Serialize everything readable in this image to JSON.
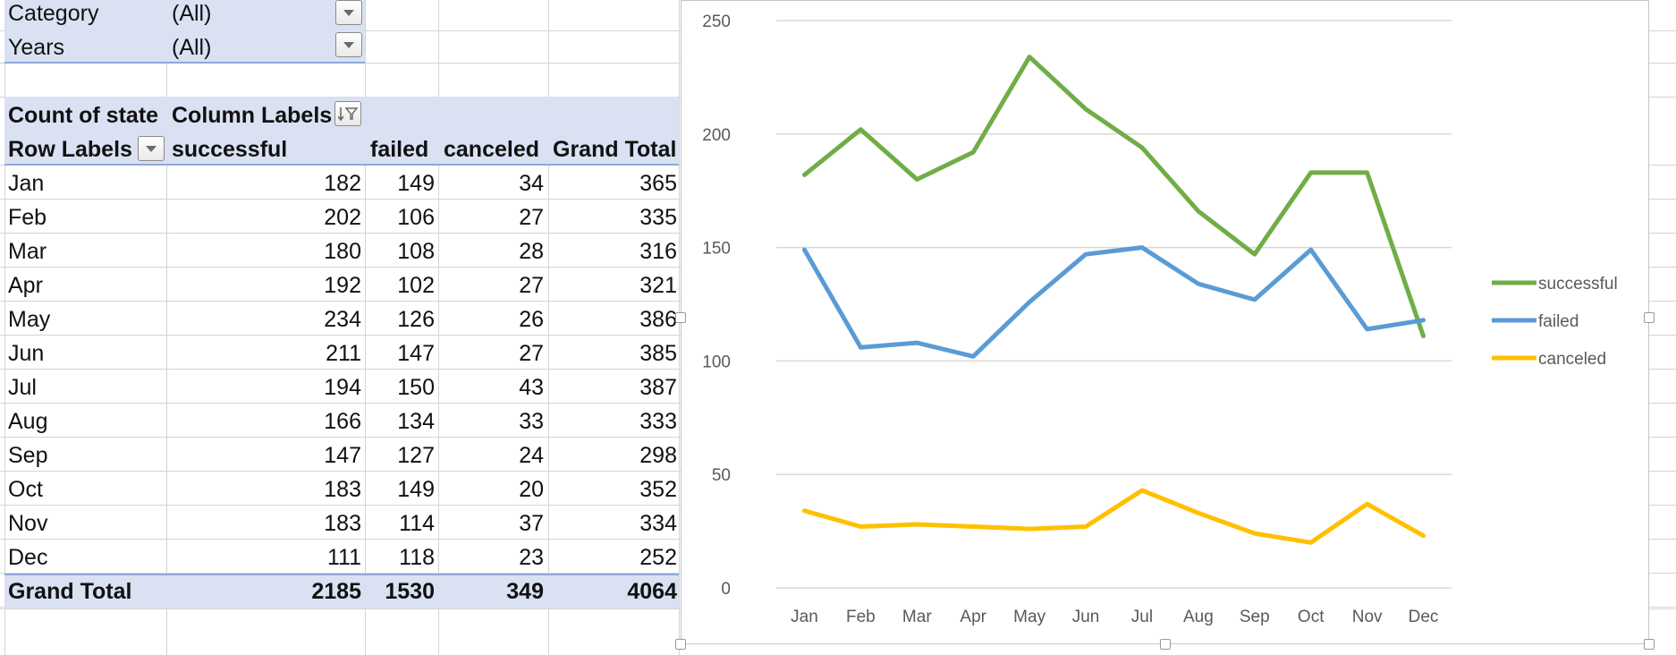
{
  "filters": [
    {
      "label": "Category",
      "value": "(All)"
    },
    {
      "label": "Years",
      "value": "(All)"
    }
  ],
  "pivot": {
    "value_field": "Count of state",
    "column_labels": "Column Labels",
    "row_labels": "Row Labels",
    "columns": [
      "successful",
      "failed",
      "canceled",
      "Grand Total"
    ],
    "rows": [
      {
        "label": "Jan",
        "values": [
          "182",
          "149",
          "34",
          "365"
        ]
      },
      {
        "label": "Feb",
        "values": [
          "202",
          "106",
          "27",
          "335"
        ]
      },
      {
        "label": "Mar",
        "values": [
          "180",
          "108",
          "28",
          "316"
        ]
      },
      {
        "label": "Apr",
        "values": [
          "192",
          "102",
          "27",
          "321"
        ]
      },
      {
        "label": "May",
        "values": [
          "234",
          "126",
          "26",
          "386"
        ]
      },
      {
        "label": "Jun",
        "values": [
          "211",
          "147",
          "27",
          "385"
        ]
      },
      {
        "label": "Jul",
        "values": [
          "194",
          "150",
          "43",
          "387"
        ]
      },
      {
        "label": "Aug",
        "values": [
          "166",
          "134",
          "33",
          "333"
        ]
      },
      {
        "label": "Sep",
        "values": [
          "147",
          "127",
          "24",
          "298"
        ]
      },
      {
        "label": "Oct",
        "values": [
          "183",
          "149",
          "20",
          "352"
        ]
      },
      {
        "label": "Nov",
        "values": [
          "183",
          "114",
          "37",
          "334"
        ]
      },
      {
        "label": "Dec",
        "values": [
          "111",
          "118",
          "23",
          "252"
        ]
      }
    ],
    "grand_total": {
      "label": "Grand Total",
      "values": [
        "2185",
        "1530",
        "349",
        "4064"
      ]
    }
  },
  "icons": {
    "dropdown": "dropdown-arrow-icon",
    "filter_sort": "filter-sort-icon"
  },
  "colors": {
    "header_band": "#d9e1f2",
    "successful": "#70ad47",
    "failed": "#5b9bd5",
    "canceled": "#ffc000",
    "gridline": "#d9d9d9"
  },
  "chart_data": {
    "type": "line",
    "title": "",
    "xlabel": "",
    "ylabel": "",
    "categories": [
      "Jan",
      "Feb",
      "Mar",
      "Apr",
      "May",
      "Jun",
      "Jul",
      "Aug",
      "Sep",
      "Oct",
      "Nov",
      "Dec"
    ],
    "ylim": [
      0,
      250
    ],
    "yticks": [
      0,
      50,
      100,
      150,
      200,
      250
    ],
    "legend_position": "right",
    "series": [
      {
        "name": "successful",
        "color": "#70ad47",
        "values": [
          182,
          202,
          180,
          192,
          234,
          211,
          194,
          166,
          147,
          183,
          183,
          111
        ]
      },
      {
        "name": "failed",
        "color": "#5b9bd5",
        "values": [
          149,
          106,
          108,
          102,
          126,
          147,
          150,
          134,
          127,
          149,
          114,
          118
        ]
      },
      {
        "name": "canceled",
        "color": "#ffc000",
        "values": [
          34,
          27,
          28,
          27,
          26,
          27,
          43,
          33,
          24,
          20,
          37,
          23
        ]
      }
    ]
  }
}
